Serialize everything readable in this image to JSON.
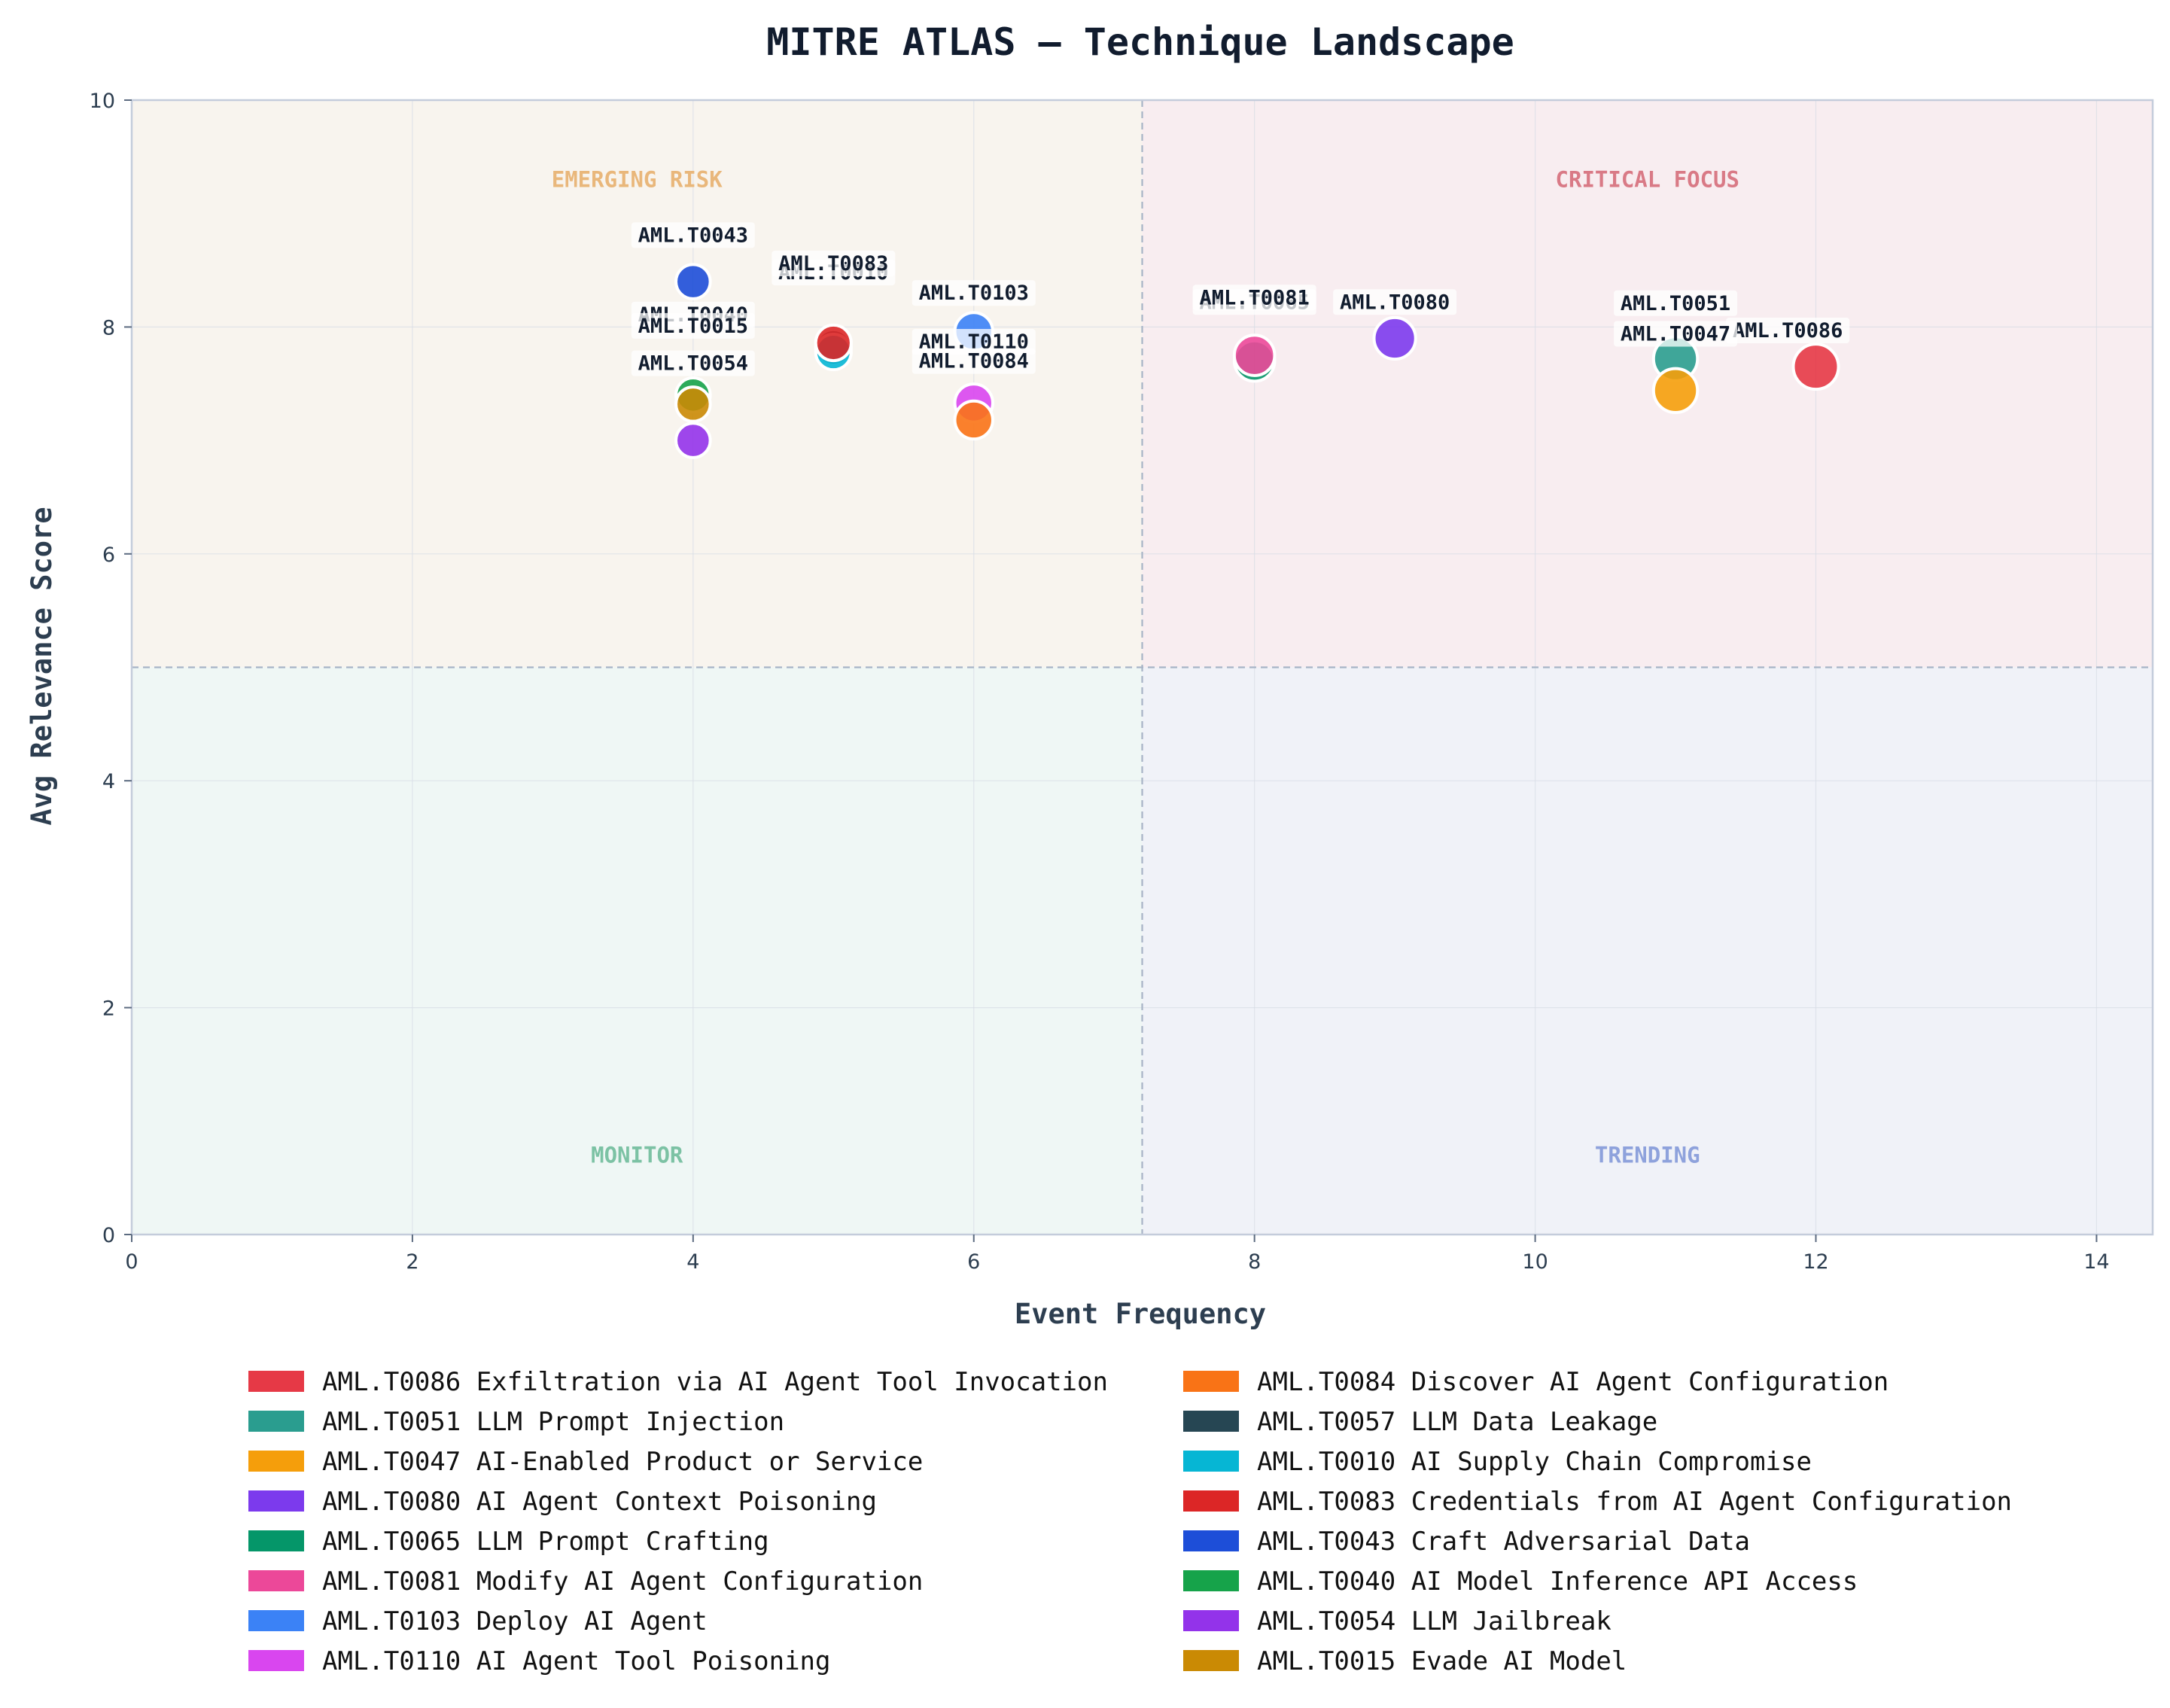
{
  "chart_data": {
    "type": "scatter",
    "title": "MITRE ATLAS — Technique Landscape",
    "xlabel": "Event Frequency",
    "ylabel": "Avg Relevance Score",
    "xlim": [
      0,
      14.4
    ],
    "ylim": [
      0,
      10
    ],
    "x_ticks": [
      0,
      2,
      4,
      6,
      8,
      10,
      12,
      14
    ],
    "y_ticks": [
      0,
      2,
      4,
      6,
      8,
      10
    ],
    "grid": true,
    "threshold_x": 7.2,
    "threshold_y": 5,
    "quadrants": [
      {
        "label": "EMERGING RISK",
        "x": 3.6,
        "y": 9.3,
        "color": "#e9b77b",
        "bg": "#f8f4ee",
        "region": "top-left"
      },
      {
        "label": "CRITICAL FOCUS",
        "x": 10.8,
        "y": 9.3,
        "color": "#d97a86",
        "bg": "#f8edf0",
        "region": "top-right"
      },
      {
        "label": "MONITOR",
        "x": 3.6,
        "y": 0.7,
        "color": "#7cc2a4",
        "bg": "#eff7f5",
        "region": "bottom-left"
      },
      {
        "label": "TRENDING",
        "x": 10.8,
        "y": 0.7,
        "color": "#8ea2dc",
        "bg": "#f0f2f8",
        "region": "bottom-right"
      }
    ],
    "legend_position": "bottom",
    "series": [
      {
        "id": "AML.T0086",
        "name": "AML.T0086 Exfiltration via AI Agent Tool Invocation",
        "color": "#e63946",
        "x": 12,
        "y": 7.65,
        "size": 1.0,
        "label": "AML.T0086"
      },
      {
        "id": "AML.T0051",
        "name": "AML.T0051 LLM Prompt Injection",
        "color": "#2a9d8f",
        "x": 11,
        "y": 7.72,
        "size": 0.95,
        "label": "AML.T0051"
      },
      {
        "id": "AML.T0047",
        "name": "AML.T0047 AI-Enabled Product or Service",
        "color": "#f59e0b",
        "x": 11,
        "y": 7.44,
        "size": 0.95,
        "label": "AML.T0047"
      },
      {
        "id": "AML.T0080",
        "name": "AML.T0080 AI Agent Context Poisoning",
        "color": "#7c3aed",
        "x": 9,
        "y": 7.9,
        "size": 0.85,
        "label": "AML.T0080"
      },
      {
        "id": "AML.T0065",
        "name": "AML.T0065 LLM Prompt Crafting",
        "color": "#059669",
        "x": 8,
        "y": 7.7,
        "size": 0.8,
        "label": "AML.T0065"
      },
      {
        "id": "AML.T0081",
        "name": "AML.T0081 Modify AI Agent Configuration",
        "color": "#ec4899",
        "x": 8,
        "y": 7.75,
        "size": 0.8,
        "label": "AML.T0081"
      },
      {
        "id": "AML.T0103",
        "name": "AML.T0103 Deploy AI Agent",
        "color": "#3b82f6",
        "x": 6,
        "y": 7.96,
        "size": 0.7,
        "label": "AML.T0103"
      },
      {
        "id": "AML.T0110",
        "name": "AML.T0110 AI Agent Tool Poisoning",
        "color": "#d946ef",
        "x": 6,
        "y": 7.33,
        "size": 0.7,
        "label": "AML.T0110"
      },
      {
        "id": "AML.T0084",
        "name": "AML.T0084 Discover AI Agent Configuration",
        "color": "#f97316",
        "x": 6,
        "y": 7.18,
        "size": 0.7,
        "label": "AML.T0084"
      },
      {
        "id": "AML.T0057",
        "name": "AML.T0057 LLM Data Leakage",
        "color": "#264653",
        "x": 5,
        "y": 7.82,
        "size": 0.6,
        "label": "AML.T0057"
      },
      {
        "id": "AML.T0010",
        "name": "AML.T0010 AI Supply Chain Compromise",
        "color": "#06b6d4",
        "x": 5,
        "y": 7.78,
        "size": 0.6,
        "label": "AML.T0010"
      },
      {
        "id": "AML.T0083",
        "name": "AML.T0083 Credentials from AI Agent Configuration",
        "color": "#dc2626",
        "x": 5,
        "y": 7.86,
        "size": 0.6,
        "label": "AML.T0083"
      },
      {
        "id": "AML.T0043",
        "name": "AML.T0043 Craft Adversarial Data",
        "color": "#1d4ed8",
        "x": 4,
        "y": 8.4,
        "size": 0.55,
        "label": "AML.T0043"
      },
      {
        "id": "AML.T0040",
        "name": "AML.T0040 AI Model Inference API Access",
        "color": "#16a34a",
        "x": 4,
        "y": 7.4,
        "size": 0.55,
        "label": "AML.T0040"
      },
      {
        "id": "AML.T0054",
        "name": "AML.T0054 LLM Jailbreak",
        "color": "#9333ea",
        "x": 4,
        "y": 7.0,
        "size": 0.55,
        "label": "AML.T0054"
      },
      {
        "id": "AML.T0015",
        "name": "AML.T0015 Evade AI Model",
        "color": "#ca8a04",
        "x": 4,
        "y": 7.32,
        "size": 0.55,
        "label": "AML.T0015"
      }
    ],
    "point_labels": [
      {
        "text": "AML.T0043",
        "x": 4,
        "y": 8.75
      },
      {
        "text": "AML.T0040",
        "x": 4,
        "y": 8.05
      },
      {
        "text": "AML.T0015",
        "x": 4,
        "y": 7.95
      },
      {
        "text": "AML.T0054",
        "x": 4,
        "y": 7.62
      },
      {
        "text": "AML.T0010",
        "x": 5,
        "y": 8.42
      },
      {
        "text": "AML.T0083",
        "x": 5,
        "y": 8.5
      },
      {
        "text": "AML.T0103",
        "x": 6,
        "y": 8.24
      },
      {
        "text": "AML.T0110",
        "x": 6,
        "y": 7.81
      },
      {
        "text": "AML.T0084",
        "x": 6,
        "y": 7.64
      },
      {
        "text": "AML.T0065",
        "x": 8,
        "y": 8.16
      },
      {
        "text": "AML.T0081",
        "x": 8,
        "y": 8.2
      },
      {
        "text": "AML.T0080",
        "x": 9,
        "y": 8.16
      },
      {
        "text": "AML.T0051",
        "x": 11,
        "y": 8.15
      },
      {
        "text": "AML.T0086",
        "x": 11.8,
        "y": 7.91
      },
      {
        "text": "AML.T0047",
        "x": 11,
        "y": 7.88
      }
    ]
  }
}
